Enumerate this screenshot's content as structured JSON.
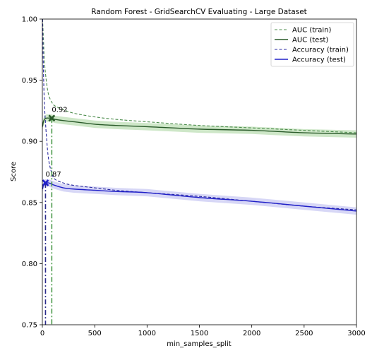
{
  "chart_data": {
    "type": "line",
    "title": "Random Forest - GridSearchCV Evaluating - Large Dataset",
    "xlabel": "min_samples_split",
    "ylabel": "Score",
    "xlim": [
      0,
      3000
    ],
    "ylim": [
      0.75,
      1.0
    ],
    "x_ticks": [
      0,
      500,
      1000,
      1500,
      2000,
      2500,
      3000
    ],
    "x_tick_labels": [
      "0",
      "500",
      "1000",
      "1500",
      "2000",
      "2500",
      "3000"
    ],
    "y_ticks": [
      0.75,
      0.8,
      0.85,
      0.9,
      0.95,
      1.0
    ],
    "y_tick_labels": [
      "0.75",
      "0.80",
      "0.85",
      "0.90",
      "0.95",
      "1.00"
    ],
    "grid": false,
    "legend_position": "top-right",
    "series": [
      {
        "name": "AUC (train)",
        "color": "#4c8c4c",
        "style": "dashed",
        "x": [
          2,
          10,
          20,
          40,
          60,
          90,
          120,
          200,
          300,
          500,
          700,
          1000,
          1500,
          2000,
          2500,
          3000
        ],
        "y": [
          1.0,
          0.985,
          0.965,
          0.948,
          0.938,
          0.932,
          0.929,
          0.926,
          0.923,
          0.92,
          0.918,
          0.916,
          0.913,
          0.911,
          0.909,
          0.907
        ]
      },
      {
        "name": "AUC (test)",
        "color": "#2a5a2a",
        "style": "solid",
        "band": 0.003,
        "band_color": "#b9ddb0",
        "x": [
          2,
          10,
          20,
          40,
          60,
          90,
          120,
          200,
          300,
          500,
          700,
          1000,
          1500,
          2000,
          2500,
          3000
        ],
        "y": [
          0.912,
          0.916,
          0.918,
          0.919,
          0.919,
          0.919,
          0.918,
          0.917,
          0.916,
          0.914,
          0.913,
          0.912,
          0.91,
          0.909,
          0.907,
          0.906
        ]
      },
      {
        "name": "Accuracy (train)",
        "color": "#2a2aa0",
        "style": "dashed",
        "x": [
          2,
          10,
          20,
          40,
          60,
          90,
          120,
          200,
          300,
          500,
          700,
          1000,
          1500,
          2000,
          2500,
          3000
        ],
        "y": [
          1.0,
          0.96,
          0.93,
          0.903,
          0.885,
          0.874,
          0.869,
          0.866,
          0.864,
          0.862,
          0.86,
          0.858,
          0.855,
          0.851,
          0.847,
          0.844
        ]
      },
      {
        "name": "Accuracy (test)",
        "color": "#2020c8",
        "style": "solid",
        "band": 0.003,
        "band_color": "#c6c6f2",
        "x": [
          2,
          10,
          20,
          40,
          60,
          90,
          120,
          200,
          300,
          500,
          700,
          1000,
          1500,
          2000,
          2500,
          3000
        ],
        "y": [
          0.861,
          0.864,
          0.866,
          0.866,
          0.866,
          0.865,
          0.864,
          0.862,
          0.861,
          0.86,
          0.859,
          0.858,
          0.854,
          0.851,
          0.847,
          0.843
        ]
      }
    ],
    "best_markers": [
      {
        "series": "AUC (test)",
        "x": 90,
        "y": 0.919,
        "label": "0.92",
        "color": "#2a5a2a",
        "vline_color": "#4c9a4c"
      },
      {
        "series": "Accuracy (test)",
        "x": 30,
        "y": 0.866,
        "label": "0.87",
        "color": "#2020c8",
        "vline_color": "#2a2a8a"
      }
    ]
  }
}
